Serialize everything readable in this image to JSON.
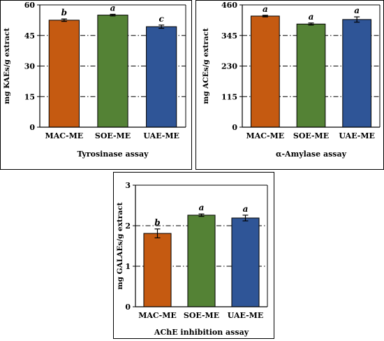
{
  "colors": {
    "MAC-ME": "#c55a11",
    "SOE-ME": "#548235",
    "UAE-ME": "#2f5597"
  },
  "chart_data": [
    {
      "type": "bar",
      "categories": [
        "MAC-ME",
        "SOE-ME",
        "UAE-ME"
      ],
      "values": [
        52.5,
        55.0,
        49.3
      ],
      "errors": [
        0.6,
        0.4,
        0.8
      ],
      "significance": [
        "b",
        "a",
        "c"
      ],
      "xlabel": "Tyrosinase assay",
      "ylabel": "mg KAEs/g extract",
      "ylim": [
        0,
        60
      ],
      "yticks": [
        0,
        15,
        30,
        45,
        60
      ],
      "grid": true
    },
    {
      "type": "bar",
      "categories": [
        "MAC-ME",
        "SOE-ME",
        "UAE-ME"
      ],
      "values": [
        418,
        388,
        405
      ],
      "errors": [
        3,
        4,
        10
      ],
      "significance": [
        "a",
        "a",
        "a"
      ],
      "xlabel": "α-Amylase assay",
      "ylabel": "mg ACEs/g extract",
      "ylim": [
        0,
        460
      ],
      "yticks": [
        0,
        115,
        230,
        345,
        460
      ],
      "grid": true
    },
    {
      "type": "bar",
      "categories": [
        "MAC-ME",
        "SOE-ME",
        "UAE-ME"
      ],
      "values": [
        1.81,
        2.26,
        2.19
      ],
      "errors": [
        0.11,
        0.03,
        0.07
      ],
      "significance": [
        "b",
        "a",
        "a"
      ],
      "xlabel": "AChE inhibition assay",
      "ylabel": "mg GALAEs/g extract",
      "ylim": [
        0,
        3
      ],
      "yticks": [
        0,
        1,
        2,
        3
      ],
      "grid": true
    }
  ]
}
